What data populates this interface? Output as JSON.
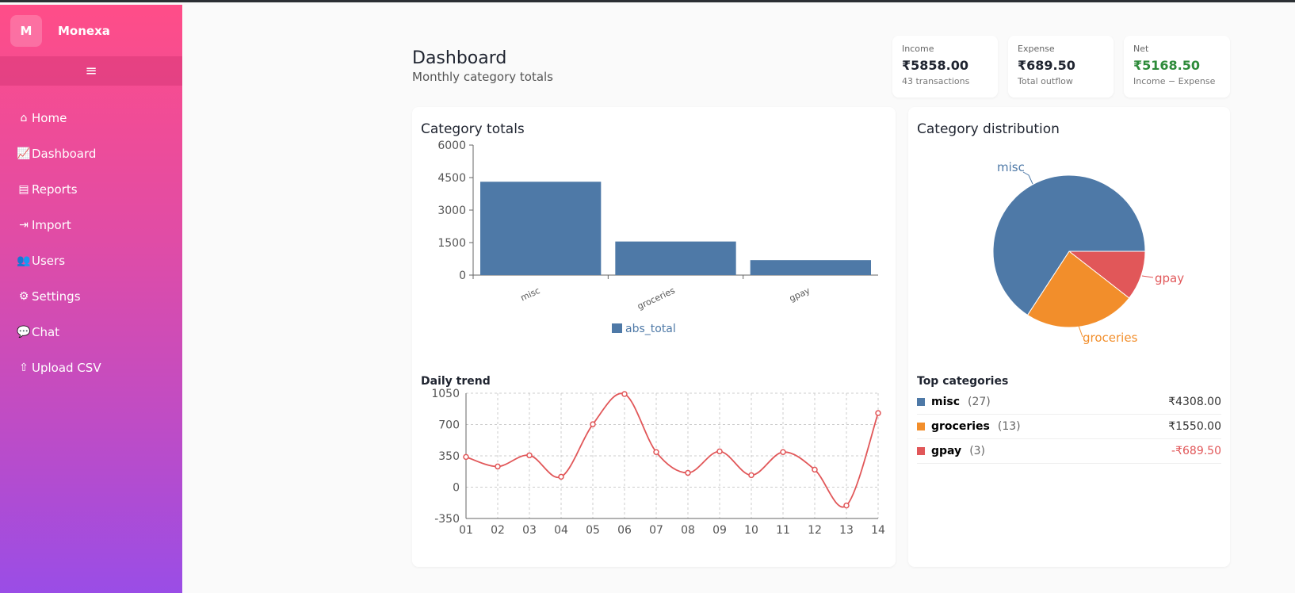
{
  "brand": {
    "logo": "M",
    "name": "Monexa",
    "menu_icon": "≡"
  },
  "nav": [
    {
      "label": "Home",
      "icon": "home-icon",
      "glyph": "⌂"
    },
    {
      "label": "Dashboard",
      "icon": "chart-line-icon",
      "glyph": "📈"
    },
    {
      "label": "Reports",
      "icon": "file-icon",
      "glyph": "▤"
    },
    {
      "label": "Import",
      "icon": "import-icon",
      "glyph": "⇥"
    },
    {
      "label": "Users",
      "icon": "users-icon",
      "glyph": "👥"
    },
    {
      "label": "Settings",
      "icon": "gear-icon",
      "glyph": "⚙"
    },
    {
      "label": "Chat",
      "icon": "chat-icon",
      "glyph": "💬"
    },
    {
      "label": "Upload CSV",
      "icon": "upload-icon",
      "glyph": "⇧"
    }
  ],
  "header": {
    "title": "Dashboard",
    "subtitle": "Monthly category totals"
  },
  "stats": [
    {
      "label": "Income",
      "value": "₹5858.00",
      "sub": "43 transactions"
    },
    {
      "label": "Expense",
      "value": "₹689.50",
      "sub": "Total outflow"
    },
    {
      "label": "Net",
      "value": "₹5168.50",
      "sub": "Income − Expense",
      "color": "#2e8b3a"
    }
  ],
  "colors": {
    "blue": "#4e79a7",
    "orange": "#f28e2b",
    "red": "#e15759"
  },
  "chart_data": [
    {
      "type": "bar",
      "title": "Category totals",
      "categories": [
        "misc",
        "groceries",
        "gpay"
      ],
      "series": [
        {
          "name": "abs_total",
          "values": [
            4308,
            1550,
            689.5
          ]
        }
      ],
      "ylim": [
        0,
        6000
      ],
      "yticks": [
        0,
        1500,
        3000,
        4500,
        6000
      ],
      "legend": "bottom"
    },
    {
      "type": "pie",
      "title": "Category distribution",
      "labels": [
        "misc",
        "groceries",
        "gpay"
      ],
      "values": [
        4308,
        1550,
        689.5
      ]
    },
    {
      "type": "line",
      "title": "Daily trend",
      "x": [
        "01",
        "02",
        "03",
        "04",
        "05",
        "06",
        "07",
        "08",
        "09",
        "10",
        "11",
        "12",
        "13",
        "14"
      ],
      "values": [
        338,
        231,
        356,
        116,
        703,
        1041,
        392,
        160,
        400,
        134,
        392,
        196,
        -205,
        828
      ],
      "ylim": [
        -350,
        1050
      ],
      "yticks": [
        -350,
        0,
        350,
        700,
        1050
      ],
      "grid": true
    }
  ],
  "top": {
    "title": "Top categories",
    "rows": [
      {
        "name": "misc",
        "count": "(27)",
        "amount": "₹4308.00"
      },
      {
        "name": "groceries",
        "count": "(13)",
        "amount": "₹1550.00"
      },
      {
        "name": "gpay",
        "count": "(3)",
        "amount": "-₹689.50",
        "neg": true
      }
    ]
  }
}
